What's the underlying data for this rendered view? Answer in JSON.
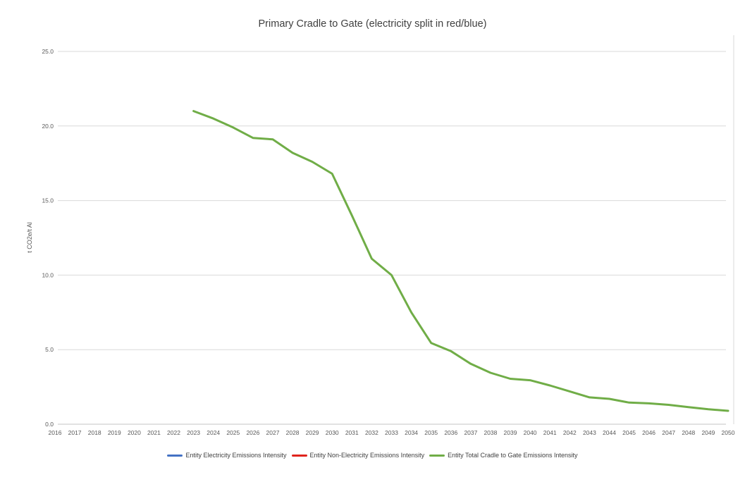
{
  "colors": {
    "gridline": "#d9d9d9",
    "axis_line": "#c6c6c6",
    "title_text": "#404040",
    "tick_text": "#595959",
    "legend_text": "#404040",
    "electricity_blue": "#4472c4",
    "non_electricity_red": "#e0231c",
    "total_green": "#70ad47"
  },
  "chart_data": {
    "type": "line",
    "title": "Primary Cradle to Gate (electricity split in red/blue)",
    "xlabel": "",
    "ylabel": "t CO2e/t Al",
    "ylim": [
      0,
      25
    ],
    "ytick_step": 5,
    "yticks": [
      "0.0",
      "5.0",
      "10.0",
      "15.0",
      "20.0",
      "25.0"
    ],
    "grid": "horizontal",
    "legend_position": "bottom",
    "x": [
      2016,
      2017,
      2018,
      2019,
      2020,
      2021,
      2022,
      2023,
      2024,
      2025,
      2026,
      2027,
      2028,
      2029,
      2030,
      2031,
      2032,
      2033,
      2034,
      2035,
      2036,
      2037,
      2038,
      2039,
      2040,
      2041,
      2042,
      2043,
      2044,
      2045,
      2046,
      2047,
      2048,
      2049,
      2050
    ],
    "series": [
      {
        "id": "electricity",
        "name": "Entity Electricity Emissions Intensity",
        "color": "#4472c4",
        "x": [],
        "values": []
      },
      {
        "id": "non-electricity",
        "name": "Entity Non-Electricity Emissions Intensity",
        "color": "#e0231c",
        "x": [],
        "values": []
      },
      {
        "id": "total",
        "name": "Entity Total Cradle to Gate Emissions Intensity",
        "color": "#70ad47",
        "x": [
          2023,
          2024,
          2025,
          2026,
          2027,
          2028,
          2029,
          2030,
          2031,
          2032,
          2033,
          2034,
          2035,
          2036,
          2037,
          2038,
          2039,
          2040,
          2041,
          2042,
          2043,
          2044,
          2045,
          2046,
          2047,
          2048,
          2049,
          2050
        ],
        "values": [
          21.0,
          20.5,
          19.9,
          19.2,
          19.1,
          18.2,
          17.6,
          16.8,
          14.0,
          11.1,
          10.0,
          7.5,
          5.45,
          4.9,
          4.05,
          3.45,
          3.05,
          2.95,
          2.6,
          2.2,
          1.8,
          1.7,
          1.45,
          1.4,
          1.3,
          1.15,
          1.0,
          0.9
        ]
      }
    ]
  }
}
